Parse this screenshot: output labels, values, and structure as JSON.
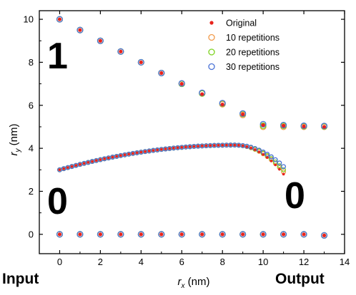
{
  "chart_data": {
    "type": "scatter",
    "xlabel": "r",
    "xlabel_sub": "x",
    "xlabel_unit": " (nm)",
    "ylabel": "r",
    "ylabel_sub": "y",
    "ylabel_unit": " (nm)",
    "xlim": [
      -1,
      14
    ],
    "ylim": [
      -0.9,
      10.4
    ],
    "xticks": [
      0,
      2,
      4,
      6,
      8,
      10,
      12,
      14
    ],
    "yticks": [
      0,
      2,
      4,
      6,
      8,
      10
    ],
    "legend_position": "top-right",
    "annotations": {
      "one": "1",
      "zero_left": "0",
      "zero_right": "0",
      "input": "Input",
      "output": "Output"
    },
    "series": [
      {
        "name": "Original",
        "marker": "filled-dot",
        "color": "#e8231c"
      },
      {
        "name": "10 repetitions",
        "marker": "open-circle",
        "color": "#f29a4a"
      },
      {
        "name": "20 repetitions",
        "marker": "open-circle",
        "color": "#7ed321"
      },
      {
        "name": "30 repetitions",
        "marker": "open-circle",
        "color": "#4a72d6"
      }
    ],
    "top_curve": {
      "x": [
        0,
        1,
        2,
        3,
        4,
        5,
        6,
        7,
        8,
        9,
        10,
        11,
        12,
        13
      ],
      "y": [
        10,
        9.5,
        9.0,
        8.5,
        8.0,
        7.5,
        7.0,
        6.52,
        6.04,
        5.58,
        5.08,
        5.05,
        5.02,
        5.0
      ],
      "y10": [
        10,
        9.5,
        9.0,
        8.5,
        8.0,
        7.5,
        7.0,
        6.55,
        6.05,
        5.55,
        5.0,
        5.0,
        5.0,
        5.0
      ],
      "y20": [
        10,
        9.5,
        9.0,
        8.5,
        8.0,
        7.5,
        7.0,
        6.55,
        6.08,
        5.6,
        5.05,
        5.05,
        5.03,
        5.02
      ],
      "y30": [
        10,
        9.5,
        9.0,
        8.5,
        8.0,
        7.5,
        7.02,
        6.58,
        6.1,
        5.62,
        5.12,
        5.08,
        5.05,
        5.04
      ]
    },
    "bottom_line": {
      "x": [
        0,
        1,
        2,
        3,
        4,
        5,
        6,
        7,
        8,
        9,
        10,
        11,
        12,
        13
      ],
      "y": [
        0,
        0,
        0,
        0,
        0,
        0,
        0,
        0,
        0,
        0,
        0,
        0,
        0,
        -0.05
      ]
    },
    "middle_curve": {
      "x_start": 0,
      "x_end": 11,
      "step": 0.2,
      "y_start": 3.0,
      "x_peak": 8.6,
      "y_peak": 4.15,
      "y_end_original": 2.8,
      "y_end_10": 2.9,
      "y_end_20": 3.0,
      "y_end_30": 3.15
    }
  }
}
